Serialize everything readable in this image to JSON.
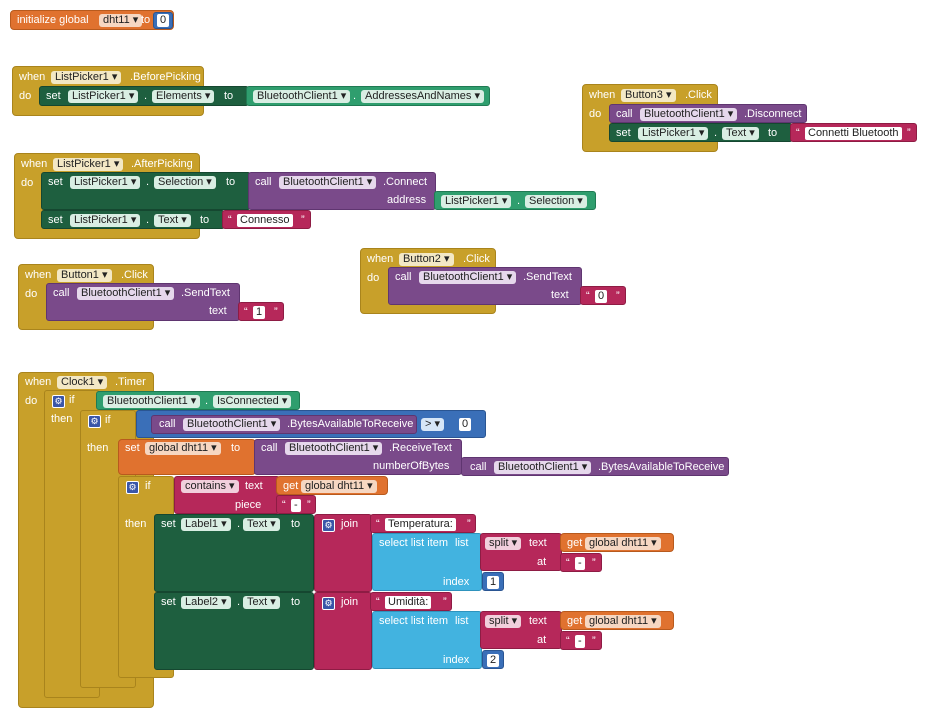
{
  "init": {
    "label": "initialize global",
    "var": "dht11",
    "to": "to",
    "value": "0"
  },
  "kw": {
    "when": "when",
    "do": "do",
    "set": "set",
    "to": "to",
    "call": "call",
    "if": "if",
    "then": "then",
    "address": "address",
    "text": "text",
    "piece": "piece",
    "index": "index",
    "at": "at",
    "get": "get",
    "join": "join",
    "select": "select list item",
    "list": "list",
    "split": "split",
    "contains": "contains",
    "numberOfBytes": "numberOfBytes",
    "dot": "."
  },
  "b1": {
    "comp": "ListPicker1",
    "event": ".BeforePicking",
    "setComp": "ListPicker1",
    "setProp": "Elements",
    "valComp": "BluetoothClient1",
    "valProp": "AddressesAndNames"
  },
  "b2": {
    "comp": "ListPicker1",
    "event": ".AfterPicking",
    "setComp": "ListPicker1",
    "setProp": "Selection",
    "callComp": "BluetoothClient1",
    "callMethod": ".Connect",
    "addrComp": "ListPicker1",
    "addrProp": "Selection",
    "set2Comp": "ListPicker1",
    "set2Prop": "Text",
    "str": "Connesso"
  },
  "b3": {
    "comp": "Button3",
    "event": ".Click",
    "callComp": "BluetoothClient1",
    "callMethod": ".Disconnect",
    "setComp": "ListPicker1",
    "setProp": "Text",
    "str": "Connetti Bluetooth"
  },
  "b4": {
    "comp": "Button1",
    "event": ".Click",
    "callComp": "BluetoothClient1",
    "callMethod": ".SendText",
    "str": "1"
  },
  "b5": {
    "comp": "Button2",
    "event": ".Click",
    "callComp": "BluetoothClient1",
    "callMethod": ".SendText",
    "str": "0"
  },
  "b6": {
    "comp": "Clock1",
    "event": ".Timer",
    "cond1Comp": "BluetoothClient1",
    "cond1Prop": "IsConnected",
    "callComp": "BluetoothClient1",
    "callMethod": ".BytesAvailableToReceive",
    "op": ">",
    "num": "0",
    "setVar": "global dht11",
    "recvComp": "BluetoothClient1",
    "recvMethod": ".ReceiveText",
    "bytesComp": "BluetoothClient1",
    "bytesMethod": ".BytesAvailableToReceive",
    "containsOp": "contains",
    "getVar": "global dht11",
    "piece": "-",
    "l1Comp": "Label1",
    "l1Prop": "Text",
    "l1Str": "Temperatura: ",
    "sep1": "-",
    "idx1": "1",
    "l2Comp": "Label2",
    "l2Prop": "Text",
    "l2Str": "Umidità: ",
    "sep2": "-",
    "idx2": "2"
  },
  "colors": {
    "event": "#c8a02a",
    "variable": "#e0722f",
    "component": "#1e5f3f",
    "procedure": "#7a4a8a",
    "text": "#b6285a",
    "list": "#42b3e0",
    "math": "#3a6fb8"
  }
}
